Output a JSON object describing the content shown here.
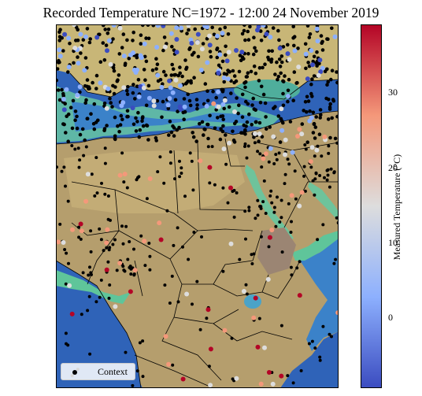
{
  "title": "Recorded Temperature NC=1972 - 12:00 24 November 2019",
  "colorbar": {
    "label": "Measured Temperature (°C)",
    "ticks": [
      "30",
      "20",
      "10",
      "0"
    ],
    "colormap": "coolwarm",
    "colors": [
      "#3b4cc0",
      "#8db0fe",
      "#dddddd",
      "#f4987a",
      "#b40426"
    ]
  },
  "legend": {
    "label": "Context"
  },
  "map": {
    "region": "North Africa, Middle East and Southern Europe",
    "colors": {
      "ocean": "#2f63b8",
      "shallow_water": "#63c2a8",
      "land": "#b59e6d",
      "borders": "#000000"
    }
  }
}
